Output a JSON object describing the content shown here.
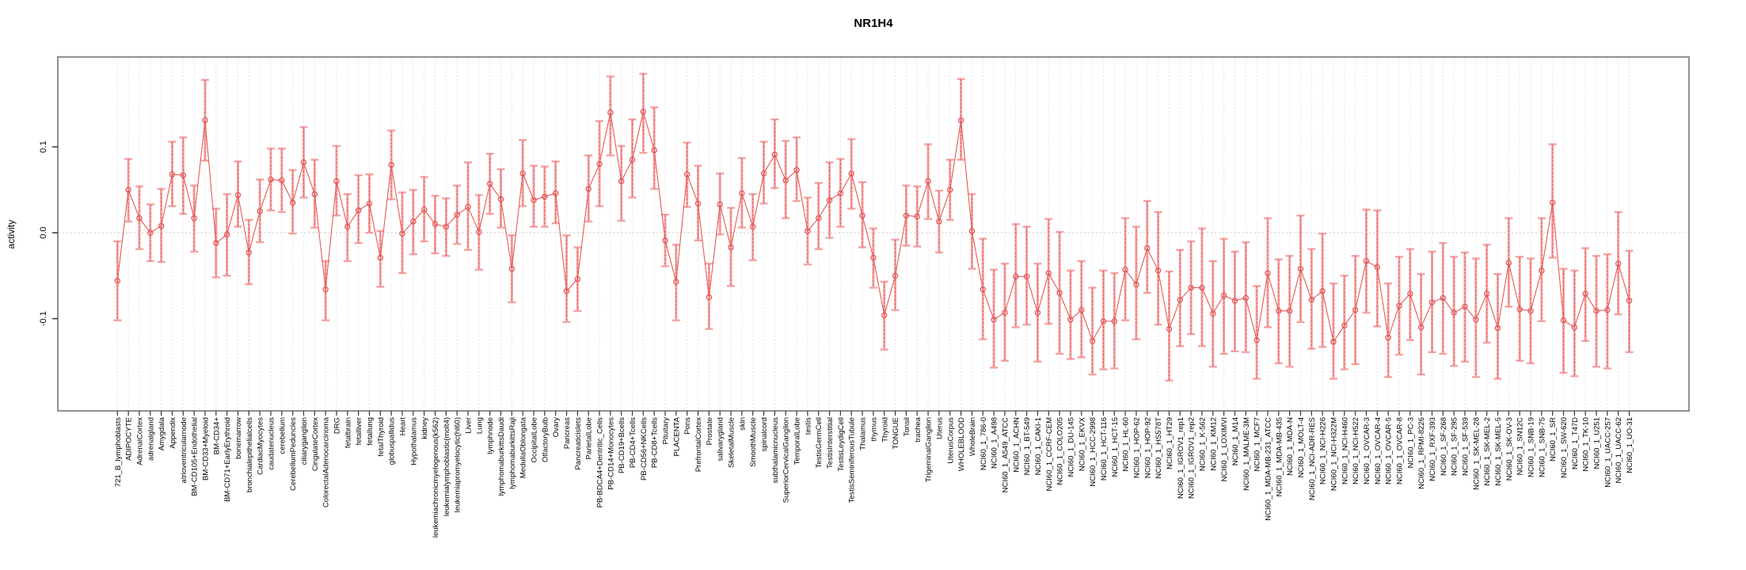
{
  "title": "NR1H4",
  "colors": {
    "error_bar": "#f4a2a2",
    "point_line": "#e25a5a",
    "grid": "#dedede",
    "zero_line": "#cccccc",
    "plot_border": "#909090",
    "text": "#000000"
  },
  "chart_data": {
    "type": "line",
    "title": "NR1H4",
    "xlabel": "",
    "ylabel": "activity",
    "yticks": [
      "0.1",
      "0.0",
      "-0.1"
    ],
    "ytick_values": [
      0.1,
      0.0,
      -0.1
    ],
    "ylim": [
      -0.207,
      0.205
    ],
    "grid": "vertical dotted line per category; horizontal dotted line at 0",
    "legend": "none",
    "marker": "open-circle with salmon CI error bars, connected by red line",
    "categories": [
      "721_B_lymphoblasts",
      "ADIPOCYTE",
      "AdrenalCortex",
      "adrenalgland",
      "Amygdala",
      "Appendix",
      "atrioventricularnode",
      "BM-CD105+Endothelial",
      "BM-CD33+Myeloid",
      "BM-CD34+",
      "BM-CD71+EarlyErythroid",
      "bonemarrow",
      "bronchialepithelialcells",
      "CardiacMyocytes",
      "caudatenucleus",
      "cerebellum",
      "CerebellumPeduncles",
      "ciliaryganglion",
      "CingulateCortex",
      "ColorectalAdenocarcinoma",
      "DRG",
      "fetalbrain",
      "fetalliver",
      "fetallung",
      "fetalThyroid",
      "globuspallidus",
      "Heart",
      "Hypothalamus",
      "kidney",
      "leukemiachronicmyelogenous(k562)",
      "leukemialymphoblastic(molt4)",
      "leukemiapromyelocytic(hl60)",
      "Liver",
      "Lung",
      "lymphnode",
      "lymphomaburkittsDaudi",
      "lymphomaburkittsRaji",
      "MedullaOblongata",
      "OccipitalLobe",
      "OlfactoryBulb",
      "Ovary",
      "Pancreas",
      "Pancreaticislets",
      "ParietalLobe",
      "PB-BDCA4+Dentritic_Cells",
      "PB-CD14+Monocytes",
      "PB-CD19+Bcells",
      "PB-CD4+Tcells",
      "PB-CD56+NKCells",
      "PB-CD8+Tcells",
      "Pituitary",
      "PLACENTA",
      "Pons",
      "PrefrontalCortex",
      "Prostate",
      "salivarygland",
      "SkeletalMuscle",
      "skin",
      "SmoothMuscle",
      "spinalcord",
      "subthalamicnucleus",
      "SuperiorCervicalGanglion",
      "TemporalLobe",
      "testis",
      "TestisGermCell",
      "TestisInterstitial",
      "TestisLeydigCell",
      "TestisSeminiferousTubule",
      "Thalamus",
      "thymus",
      "Thyroid",
      "TONGUE",
      "Tonsil",
      "trachea",
      "TrigeminalGanglion",
      "Uterus",
      "UterusCorpus",
      "WHOLEBLOOD",
      "WholeBrain",
      "NCI60_1_786-0",
      "NCI60_1_A498",
      "NCI60_1_A549_ATCC",
      "NCI60_1_ACHN",
      "NCI60_1_BT-549",
      "NCI60_1_CAKI-1",
      "NCI60_1_CCRF-CEM",
      "NCI60_1_COLO205",
      "NCI60_1_DU-145",
      "NCI60_1_EKVX",
      "NCI60_1_HCC-2998",
      "NCI60_1_HCT-116",
      "NCI60_1_HCT-15",
      "NCI60_1_HL-60",
      "NCI60_1_HOP-62",
      "NCI60_1_HOP-92",
      "NCI60_1_HS578T",
      "NCI60_1_HT29",
      "NCI60_1_IGROV1_rep1",
      "NCI60_1_IGROV1_rep2",
      "NCI60_1_K-562",
      "NCI60_1_KM12",
      "NCI60_1_LOXIMVI",
      "NCI60_1_M14",
      "NCI60_1_MALME-3M",
      "NCI60_1_MCF7",
      "NCI60_1_MDA-MB-231_ATCC",
      "NCI60_1_MDA-MB-435",
      "NCI60_1_MDA-N",
      "NCI60_1_MOLT-4",
      "NCI60_1_NCI-ADR-RES",
      "NCI60_1_NCI-H226",
      "NCI60_1_NCI-H322M",
      "NCI60_1_NCI-H460",
      "NCI60_1_NCI-H522",
      "NCI60_1_OVCAR-3",
      "NCI60_1_OVCAR-4",
      "NCI60_1_OVCAR-5",
      "NCI60_1_OVCAR-8",
      "NCI60_1_PC-3",
      "NCI60_1_RPMI-8226",
      "NCI60_1_RXF-393",
      "NCI60_1_SF-268",
      "NCI60_1_SF-295",
      "NCI60_1_SF-539",
      "NCI60_1_SK-MEL-28",
      "NCI60_1_SK-MEL-2",
      "NCI60_1_SK-MEL-5",
      "NCI60_1_SK-OV-3",
      "NCI60_1_SN12C",
      "NCI60_1_SNB-19",
      "NCI60_1_SNB-75",
      "NCI60_1_SR",
      "NCI60_1_SW-620",
      "NCI60_1_T47D",
      "NCI60_1_TK-10",
      "NCI60_1_U251",
      "NCI60_1_UACC-257",
      "NCI60_1_UACC-62",
      "NCI60_1_UO-31"
    ],
    "series": [
      {
        "name": "activity",
        "values": [
          -0.056,
          0.05,
          0.017,
          0.0,
          0.008,
          0.068,
          0.067,
          0.017,
          0.131,
          -0.012,
          -0.002,
          0.044,
          -0.023,
          0.025,
          0.062,
          0.061,
          0.035,
          0.082,
          0.045,
          -0.066,
          0.06,
          0.007,
          0.026,
          0.034,
          -0.029,
          0.079,
          -0.001,
          0.013,
          0.027,
          0.01,
          0.007,
          0.021,
          0.03,
          0.001,
          0.057,
          0.039,
          -0.042,
          0.069,
          0.038,
          0.042,
          0.046,
          -0.068,
          -0.054,
          0.051,
          0.08,
          0.14,
          0.06,
          0.085,
          0.141,
          0.096,
          -0.009,
          -0.057,
          0.068,
          0.034,
          -0.075,
          0.033,
          -0.017,
          0.046,
          0.007,
          0.069,
          0.091,
          0.061,
          0.073,
          0.002,
          0.017,
          0.038,
          0.046,
          0.069,
          0.02,
          -0.029,
          -0.096,
          -0.05,
          0.02,
          0.019,
          0.06,
          0.013,
          0.05,
          0.131,
          0.002,
          -0.066,
          -0.101,
          -0.093,
          -0.051,
          -0.051,
          -0.093,
          -0.047,
          -0.07,
          -0.101,
          -0.09,
          -0.126,
          -0.103,
          -0.103,
          -0.043,
          -0.06,
          -0.018,
          -0.044,
          -0.112,
          -0.078,
          -0.064,
          -0.064,
          -0.094,
          -0.073,
          -0.079,
          -0.076,
          -0.125,
          -0.047,
          -0.091,
          -0.091,
          -0.042,
          -0.078,
          -0.068,
          -0.127,
          -0.108,
          -0.09,
          -0.033,
          -0.04,
          -0.122,
          -0.085,
          -0.071,
          -0.11,
          -0.081,
          -0.076,
          -0.093,
          -0.086,
          -0.101,
          -0.071,
          -0.111,
          -0.035,
          -0.089,
          -0.091,
          -0.044,
          0.035,
          -0.102,
          -0.11,
          -0.071,
          -0.091,
          -0.09,
          -0.036,
          -0.079
        ],
        "ci_high": [
          -0.01,
          0.086,
          0.054,
          0.033,
          0.051,
          0.106,
          0.111,
          0.055,
          0.178,
          0.028,
          0.045,
          0.083,
          0.015,
          0.062,
          0.098,
          0.098,
          0.073,
          0.123,
          0.085,
          -0.033,
          0.101,
          0.045,
          0.067,
          0.068,
          0.002,
          0.119,
          0.047,
          0.05,
          0.065,
          0.043,
          0.04,
          0.055,
          0.082,
          0.044,
          0.092,
          0.074,
          -0.003,
          0.108,
          0.078,
          0.077,
          0.083,
          -0.003,
          -0.017,
          0.09,
          0.13,
          0.182,
          0.101,
          0.132,
          0.185,
          0.146,
          0.021,
          -0.014,
          0.105,
          0.078,
          -0.036,
          0.069,
          0.029,
          0.087,
          0.045,
          0.106,
          0.132,
          0.107,
          0.111,
          0.041,
          0.058,
          0.082,
          0.086,
          0.109,
          0.059,
          0.005,
          -0.057,
          -0.008,
          0.055,
          0.054,
          0.103,
          0.049,
          0.085,
          0.179,
          0.045,
          -0.007,
          -0.043,
          -0.036,
          0.01,
          0.007,
          -0.036,
          0.016,
          0.001,
          -0.044,
          -0.033,
          -0.064,
          -0.044,
          -0.047,
          0.017,
          0.007,
          0.037,
          0.024,
          -0.045,
          -0.02,
          -0.01,
          0.005,
          -0.033,
          -0.007,
          -0.022,
          -0.011,
          -0.062,
          0.017,
          -0.031,
          -0.027,
          0.02,
          -0.019,
          -0.001,
          -0.059,
          -0.05,
          -0.027,
          0.027,
          0.026,
          -0.059,
          -0.028,
          -0.019,
          -0.048,
          -0.022,
          -0.012,
          -0.028,
          -0.023,
          -0.03,
          -0.014,
          -0.048,
          0.017,
          -0.028,
          -0.03,
          0.017,
          0.103,
          -0.042,
          -0.044,
          -0.018,
          -0.027,
          -0.025,
          0.024,
          -0.021
        ],
        "ci_low": [
          -0.102,
          0.013,
          -0.019,
          -0.033,
          -0.034,
          0.031,
          0.022,
          -0.022,
          0.084,
          -0.052,
          -0.05,
          0.007,
          -0.06,
          -0.011,
          0.026,
          0.024,
          -0.001,
          0.041,
          0.006,
          -0.102,
          0.02,
          -0.033,
          -0.012,
          0.0,
          -0.063,
          0.039,
          -0.047,
          -0.025,
          -0.01,
          -0.024,
          -0.027,
          -0.013,
          -0.02,
          -0.043,
          0.022,
          0.006,
          -0.081,
          0.031,
          0.007,
          0.007,
          0.011,
          -0.104,
          -0.091,
          0.013,
          0.031,
          0.09,
          0.014,
          0.041,
          0.093,
          0.051,
          -0.039,
          -0.102,
          0.03,
          -0.009,
          -0.112,
          -0.002,
          -0.062,
          0.006,
          -0.032,
          0.034,
          0.052,
          0.017,
          0.037,
          -0.037,
          -0.019,
          -0.006,
          0.007,
          0.028,
          -0.017,
          -0.064,
          -0.136,
          -0.09,
          -0.015,
          -0.016,
          0.016,
          -0.023,
          0.015,
          0.085,
          -0.042,
          -0.124,
          -0.157,
          -0.149,
          -0.11,
          -0.107,
          -0.15,
          -0.106,
          -0.141,
          -0.147,
          -0.145,
          -0.165,
          -0.159,
          -0.158,
          -0.102,
          -0.124,
          -0.07,
          -0.107,
          -0.172,
          -0.132,
          -0.118,
          -0.132,
          -0.156,
          -0.141,
          -0.138,
          -0.139,
          -0.17,
          -0.11,
          -0.152,
          -0.156,
          -0.104,
          -0.135,
          -0.133,
          -0.17,
          -0.159,
          -0.153,
          -0.093,
          -0.109,
          -0.168,
          -0.142,
          -0.125,
          -0.165,
          -0.139,
          -0.141,
          -0.155,
          -0.15,
          -0.168,
          -0.128,
          -0.17,
          -0.086,
          -0.149,
          -0.152,
          -0.103,
          -0.029,
          -0.163,
          -0.167,
          -0.126,
          -0.156,
          -0.158,
          -0.095,
          -0.139
        ]
      }
    ]
  }
}
